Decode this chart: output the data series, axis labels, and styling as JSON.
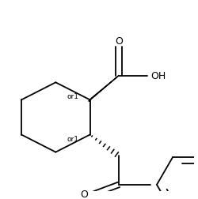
{
  "background": "#ffffff",
  "line_color": "#000000",
  "line_width": 1.3,
  "font_size": 8.0,
  "fig_width": 2.5,
  "fig_height": 2.53,
  "dpi": 100,
  "xlim": [
    0,
    250
  ],
  "ylim": [
    0,
    253
  ]
}
